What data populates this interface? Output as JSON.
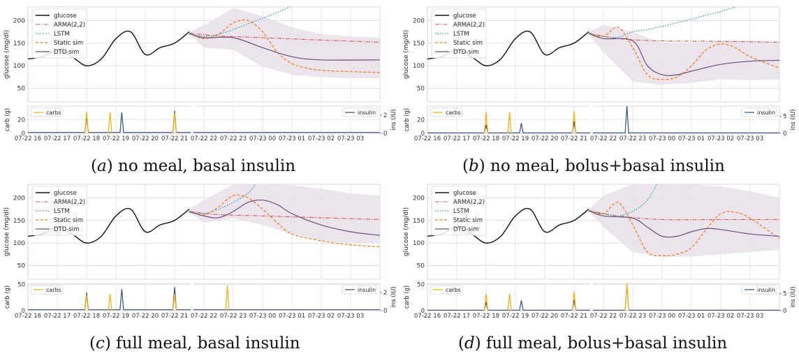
{
  "captions": [
    {
      "label": "a",
      "text": "no meal, basal insulin"
    },
    {
      "label": "b",
      "text": "no meal, bolus+basal insulin"
    },
    {
      "label": "c",
      "text": "full meal, basal insulin"
    },
    {
      "label": "d",
      "text": "full meal, bolus+basal insulin"
    }
  ],
  "colors": {
    "glucose": "#111111",
    "arma": "#d9534f",
    "lstm": "#2aa198",
    "static_sim": "#f07f19",
    "dtd_sim": "#6a4c7d",
    "band": "#e7dfea",
    "carbs": "#f2b31a",
    "insulin": "#2c4f84",
    "grid": "#dcdcdc"
  },
  "chart_data": [
    {
      "id": "a",
      "type": "line",
      "xlabel": "",
      "ylabel": "glucose (mg/dl)",
      "ylim": [
        20,
        230
      ],
      "yticks": [
        50,
        100,
        150,
        200
      ],
      "grid": true,
      "legend": {
        "position": "top-left",
        "entries": [
          "glucose",
          "ARMA(2,2)",
          "LSTM",
          "Static sim",
          "DTD-sim"
        ]
      },
      "x_range": [
        "07-22 16:00",
        "07-23 04:00"
      ],
      "x_ticks": [
        "07-22 16",
        "07-22 17",
        "07-22 18",
        "07-22 19",
        "07-22 20",
        "07-22 21",
        "07-22 22",
        "07-22 23",
        "07-23 00",
        "07-23 01",
        "07-23 02",
        "07-23 03"
      ],
      "glucose": {
        "x": [
          "07-22 16:00",
          "07-22 16:30",
          "07-22 17:00",
          "07-22 17:30",
          "07-22 18:00",
          "07-22 18:30",
          "07-22 19:00",
          "07-22 19:30",
          "07-22 20:00",
          "07-22 20:30",
          "07-22 21:00",
          "07-22 21:30"
        ],
        "y": [
          115,
          120,
          135,
          120,
          100,
          115,
          160,
          175,
          125,
          140,
          150,
          175
        ]
      },
      "arma": {
        "x": [
          "07-22 21:30",
          "07-22 22:30",
          "07-23 00:00",
          "07-23 01:30",
          "07-23 04:00"
        ],
        "y": [
          172,
          166,
          162,
          158,
          152
        ]
      },
      "lstm": {
        "x": [
          "07-22 21:30",
          "07-22 22:00",
          "07-22 22:30",
          "07-22 23:00",
          "07-22 23:30",
          "07-23 00:00",
          "07-23 00:30",
          "07-23 01:00"
        ],
        "y": [
          170,
          165,
          170,
          180,
          193,
          205,
          218,
          232
        ]
      },
      "static_sim": {
        "x": [
          "07-22 21:30",
          "07-22 22:00",
          "07-22 22:30",
          "07-22 23:00",
          "07-22 23:30",
          "07-23 00:00",
          "07-23 00:30",
          "07-23 01:00",
          "07-23 01:30",
          "07-23 02:00",
          "07-23 03:00",
          "07-23 04:00"
        ],
        "y": [
          172,
          160,
          170,
          195,
          200,
          175,
          130,
          105,
          95,
          90,
          87,
          85
        ]
      },
      "dtd_sim": {
        "x": [
          "07-22 21:30",
          "07-22 22:00",
          "07-22 23:00",
          "07-23 00:00",
          "07-23 01:00",
          "07-23 02:00",
          "07-23 04:00"
        ],
        "y": [
          172,
          162,
          162,
          140,
          120,
          113,
          113
        ]
      },
      "band": {
        "x": [
          "07-22 21:30",
          "07-22 22:00",
          "07-22 23:00",
          "07-23 00:00",
          "07-23 01:00",
          "07-23 02:00",
          "07-23 03:00",
          "07-23 04:00"
        ],
        "upper": [
          175,
          190,
          228,
          210,
          185,
          170,
          165,
          162
        ],
        "lower": [
          170,
          140,
          135,
          98,
          80,
          75,
          72,
          72
        ]
      },
      "sub": {
        "carb_label": "carb (g)",
        "ins_label": "ins (IU)",
        "carb_ylim": [
          0,
          40
        ],
        "carb_yticks": [
          0,
          20
        ],
        "ins_ylim": [
          0,
          3
        ],
        "ins_yticks": [
          0,
          2
        ],
        "carbs_legend": "carbs",
        "insulin_legend": "insulin",
        "carbs": [
          {
            "x": "07-22 18:00",
            "y": 32
          },
          {
            "x": "07-22 18:48",
            "y": 31
          },
          {
            "x": "07-22 21:00",
            "y": 30
          }
        ],
        "insulin": [
          {
            "x": "07-22 18:00",
            "y": 1.9
          },
          {
            "x": "07-22 19:12",
            "y": 2.3
          },
          {
            "x": "07-22 21:00",
            "y": 2.5
          }
        ],
        "insulin_basal": 0.1
      }
    },
    {
      "id": "b",
      "type": "line",
      "xlabel": "",
      "ylabel": "glucose (mg/dl)",
      "ylim": [
        20,
        230
      ],
      "yticks": [
        50,
        100,
        150,
        200
      ],
      "grid": true,
      "legend": {
        "position": "top-left",
        "entries": [
          "glucose",
          "ARMA(2,2)",
          "LSTM",
          "Static sim",
          "DTD-sim"
        ]
      },
      "x_range": [
        "07-22 16:00",
        "07-23 04:00"
      ],
      "x_ticks": [
        "07-22 16",
        "07-22 17",
        "07-22 18",
        "07-22 19",
        "07-22 20",
        "07-22 21",
        "07-22 22",
        "07-22 23",
        "07-23 00",
        "07-23 01",
        "07-23 02",
        "07-23 03"
      ],
      "glucose": {
        "x": [
          "07-22 16:00",
          "07-22 16:30",
          "07-22 17:00",
          "07-22 17:30",
          "07-22 18:00",
          "07-22 18:30",
          "07-22 19:00",
          "07-22 19:30",
          "07-22 20:00",
          "07-22 20:30",
          "07-22 21:00",
          "07-22 21:30"
        ],
        "y": [
          115,
          120,
          135,
          120,
          100,
          115,
          160,
          175,
          125,
          140,
          150,
          175
        ]
      },
      "arma": {
        "x": [
          "07-22 21:30",
          "07-22 22:30",
          "07-23 00:00",
          "07-23 02:00",
          "07-23 04:00"
        ],
        "y": [
          172,
          160,
          155,
          154,
          152
        ]
      },
      "lstm": {
        "x": [
          "07-22 21:30",
          "07-22 22:00",
          "07-22 22:30",
          "07-22 23:00",
          "07-22 23:30",
          "07-23 00:00",
          "07-23 00:30",
          "07-23 01:00",
          "07-23 01:30",
          "07-23 02:00",
          "07-23 02:30"
        ],
        "y": [
          170,
          165,
          163,
          175,
          180,
          187,
          195,
          203,
          212,
          220,
          230
        ]
      },
      "static_sim": {
        "x": [
          "07-22 21:30",
          "07-22 22:00",
          "07-22 22:30",
          "07-22 23:00",
          "07-22 23:30",
          "07-23 00:00",
          "07-23 00:30",
          "07-23 01:00",
          "07-23 01:30",
          "07-23 02:00",
          "07-23 02:30",
          "07-23 03:00",
          "07-23 04:00"
        ],
        "y": [
          172,
          165,
          185,
          140,
          80,
          70,
          75,
          100,
          135,
          148,
          140,
          120,
          95
        ]
      },
      "dtd_sim": {
        "x": [
          "07-22 21:30",
          "07-22 22:00",
          "07-22 23:00",
          "07-22 23:30",
          "07-23 00:00",
          "07-23 00:30",
          "07-23 01:00",
          "07-23 02:00",
          "07-23 03:00",
          "07-23 04:00"
        ],
        "y": [
          172,
          160,
          155,
          100,
          80,
          80,
          88,
          103,
          110,
          112
        ]
      },
      "band": {
        "x": [
          "07-22 21:30",
          "07-22 22:00",
          "07-22 23:00",
          "07-23 00:00",
          "07-23 01:00",
          "07-23 02:00",
          "07-23 03:00",
          "07-23 04:00"
        ],
        "upper": [
          175,
          190,
          175,
          150,
          150,
          155,
          155,
          152
        ],
        "lower": [
          170,
          130,
          65,
          58,
          62,
          70,
          68,
          70
        ]
      },
      "sub": {
        "carb_label": "carb (g)",
        "ins_label": "ins (IU)",
        "carb_ylim": [
          0,
          40
        ],
        "carb_yticks": [
          0,
          20
        ],
        "ins_ylim": [
          0,
          8
        ],
        "ins_yticks": [
          0,
          5
        ],
        "carbs_legend": "carbs",
        "insulin_legend": "insulin",
        "carbs": [
          {
            "x": "07-22 18:00",
            "y": 31
          },
          {
            "x": "07-22 18:48",
            "y": 31
          },
          {
            "x": "07-22 21:00",
            "y": 33
          }
        ],
        "insulin": [
          {
            "x": "07-22 18:00",
            "y": 2.5
          },
          {
            "x": "07-22 19:12",
            "y": 3
          },
          {
            "x": "07-22 21:00",
            "y": 3.5
          },
          {
            "x": "07-22 22:48",
            "y": 8
          }
        ],
        "insulin_basal": 0.15
      }
    },
    {
      "id": "c",
      "type": "line",
      "xlabel": "",
      "ylabel": "glucose (mg/dl)",
      "ylim": [
        20,
        230
      ],
      "yticks": [
        50,
        100,
        150,
        200
      ],
      "grid": true,
      "legend": {
        "position": "top-left",
        "entries": [
          "glucose",
          "ARMA(2,2)",
          "LSTM",
          "Static sim",
          "DTD-sim"
        ]
      },
      "x_range": [
        "07-22 16:00",
        "07-23 04:00"
      ],
      "x_ticks": [
        "07-22 16",
        "07-22 17",
        "07-22 18",
        "07-22 19",
        "07-22 20",
        "07-22 21",
        "07-22 22",
        "07-22 23",
        "07-23 00",
        "07-23 01",
        "07-23 02",
        "07-23 03"
      ],
      "glucose": {
        "x": [
          "07-22 16:00",
          "07-22 16:30",
          "07-22 17:00",
          "07-22 17:30",
          "07-22 18:00",
          "07-22 18:30",
          "07-22 19:00",
          "07-22 19:30",
          "07-22 20:00",
          "07-22 20:30",
          "07-22 21:00",
          "07-22 21:30"
        ],
        "y": [
          115,
          120,
          135,
          120,
          100,
          115,
          160,
          175,
          125,
          140,
          150,
          175
        ]
      },
      "arma": {
        "x": [
          "07-22 21:30",
          "07-22 22:30",
          "07-23 00:00",
          "07-23 02:00",
          "07-23 04:00"
        ],
        "y": [
          170,
          163,
          160,
          156,
          152
        ]
      },
      "lstm": {
        "x": [
          "07-22 21:30",
          "07-22 22:00",
          "07-22 22:30",
          "07-22 23:00",
          "07-22 23:30",
          "07-22 23:45"
        ],
        "y": [
          168,
          165,
          175,
          190,
          210,
          230
        ]
      },
      "static_sim": {
        "x": [
          "07-22 21:30",
          "07-22 22:00",
          "07-22 22:30",
          "07-22 23:00",
          "07-22 23:30",
          "07-23 00:00",
          "07-23 00:30",
          "07-23 01:00",
          "07-23 02:00",
          "07-23 03:00",
          "07-23 04:00"
        ],
        "y": [
          170,
          162,
          180,
          205,
          200,
          175,
          145,
          120,
          105,
          96,
          92
        ]
      },
      "dtd_sim": {
        "x": [
          "07-22 21:30",
          "07-22 22:00",
          "07-22 22:30",
          "07-22 23:00",
          "07-22 23:30",
          "07-23 00:00",
          "07-23 00:30",
          "07-23 01:00",
          "07-23 02:00",
          "07-23 03:00",
          "07-23 04:00"
        ],
        "y": [
          170,
          160,
          156,
          170,
          190,
          195,
          185,
          165,
          140,
          125,
          117
        ]
      },
      "band": {
        "x": [
          "07-22 21:30",
          "07-22 22:00",
          "07-22 23:00",
          "07-23 00:00",
          "07-23 01:00",
          "07-23 02:00",
          "07-23 03:00",
          "07-23 04:00"
        ],
        "upper": [
          175,
          195,
          230,
          230,
          228,
          220,
          210,
          205
        ],
        "lower": [
          168,
          145,
          155,
          140,
          120,
          105,
          100,
          100
        ]
      },
      "sub": {
        "carb_label": "carb (g)",
        "ins_label": "ins (IU)",
        "carb_ylim": [
          0,
          52
        ],
        "carb_yticks": [
          0,
          50
        ],
        "ins_ylim": [
          0,
          3
        ],
        "ins_yticks": [
          0,
          2
        ],
        "carbs_legend": "carbs",
        "insulin_legend": "insulin",
        "carbs": [
          {
            "x": "07-22 18:00",
            "y": 30
          },
          {
            "x": "07-22 18:48",
            "y": 32
          },
          {
            "x": "07-22 21:00",
            "y": 32
          },
          {
            "x": "07-22 22:48",
            "y": 48
          }
        ],
        "insulin": [
          {
            "x": "07-22 18:00",
            "y": 2.0
          },
          {
            "x": "07-22 19:12",
            "y": 2.4
          },
          {
            "x": "07-22 21:00",
            "y": 2.6
          }
        ],
        "insulin_basal": 0.1
      }
    },
    {
      "id": "d",
      "type": "line",
      "xlabel": "",
      "ylabel": "glucose (mg/dl)",
      "ylim": [
        20,
        230
      ],
      "yticks": [
        50,
        100,
        150,
        200
      ],
      "grid": true,
      "legend": {
        "position": "top-left",
        "entries": [
          "glucose",
          "ARMA(2,2)",
          "LSTM",
          "Static sim",
          "DTD-sim"
        ]
      },
      "x_range": [
        "07-22 16:00",
        "07-23 04:00"
      ],
      "x_ticks": [
        "07-22 16",
        "07-22 17",
        "07-22 18",
        "07-22 19",
        "07-22 20",
        "07-22 21",
        "07-22 22",
        "07-22 23",
        "07-23 00",
        "07-23 01",
        "07-23 02",
        "07-23 03"
      ],
      "glucose": {
        "x": [
          "07-22 16:00",
          "07-22 16:30",
          "07-22 17:00",
          "07-22 17:30",
          "07-22 18:00",
          "07-22 18:30",
          "07-22 19:00",
          "07-22 19:30",
          "07-22 20:00",
          "07-22 20:30",
          "07-22 21:00",
          "07-22 21:30"
        ],
        "y": [
          115,
          120,
          135,
          120,
          100,
          115,
          160,
          175,
          125,
          140,
          150,
          175
        ]
      },
      "arma": {
        "x": [
          "07-22 21:30",
          "07-22 22:30",
          "07-23 00:00",
          "07-23 02:00",
          "07-23 04:00"
        ],
        "y": [
          172,
          160,
          152,
          152,
          152
        ]
      },
      "lstm": {
        "x": [
          "07-22 21:30",
          "07-22 22:00",
          "07-22 22:30",
          "07-22 23:00",
          "07-22 23:30",
          "07-22 23:50"
        ],
        "y": [
          170,
          165,
          160,
          170,
          195,
          232
        ]
      },
      "static_sim": {
        "x": [
          "07-22 21:30",
          "07-22 22:00",
          "07-22 22:30",
          "07-22 23:00",
          "07-22 23:30",
          "07-23 00:00",
          "07-23 00:30",
          "07-23 01:00",
          "07-23 01:30",
          "07-23 02:00",
          "07-23 02:30",
          "07-23 03:00",
          "07-23 04:00"
        ],
        "y": [
          172,
          165,
          190,
          140,
          80,
          72,
          75,
          90,
          130,
          165,
          168,
          155,
          110
        ]
      },
      "dtd_sim": {
        "x": [
          "07-22 21:30",
          "07-22 22:00",
          "07-22 23:00",
          "07-22 23:30",
          "07-23 00:00",
          "07-23 00:30",
          "07-23 01:00",
          "07-23 01:30",
          "07-23 02:00",
          "07-23 03:00",
          "07-23 04:00"
        ],
        "y": [
          172,
          160,
          155,
          135,
          115,
          115,
          125,
          132,
          130,
          120,
          115
        ]
      },
      "band": {
        "x": [
          "07-22 21:30",
          "07-22 22:00",
          "07-22 23:00",
          "07-23 00:00",
          "07-23 01:00",
          "07-23 02:00",
          "07-23 03:00",
          "07-23 04:00"
        ],
        "upper": [
          175,
          205,
          230,
          230,
          230,
          225,
          215,
          200
        ],
        "lower": [
          170,
          135,
          80,
          70,
          70,
          75,
          80,
          85
        ]
      },
      "sub": {
        "carb_label": "carb (g)",
        "ins_label": "ins (IU)",
        "carb_ylim": [
          0,
          52
        ],
        "carb_yticks": [
          0,
          50
        ],
        "ins_ylim": [
          0,
          8
        ],
        "ins_yticks": [
          0,
          5
        ],
        "carbs_legend": "carbs",
        "insulin_legend": "insulin",
        "carbs": [
          {
            "x": "07-22 18:00",
            "y": 32
          },
          {
            "x": "07-22 18:48",
            "y": 32
          },
          {
            "x": "07-22 21:00",
            "y": 36
          },
          {
            "x": "07-22 22:48",
            "y": 52
          }
        ],
        "insulin": [
          {
            "x": "07-22 18:00",
            "y": 2.5
          },
          {
            "x": "07-22 19:12",
            "y": 3
          },
          {
            "x": "07-22 21:00",
            "y": 3.2
          },
          {
            "x": "07-22 22:48",
            "y": 8
          }
        ],
        "insulin_basal": 0.15
      }
    }
  ]
}
